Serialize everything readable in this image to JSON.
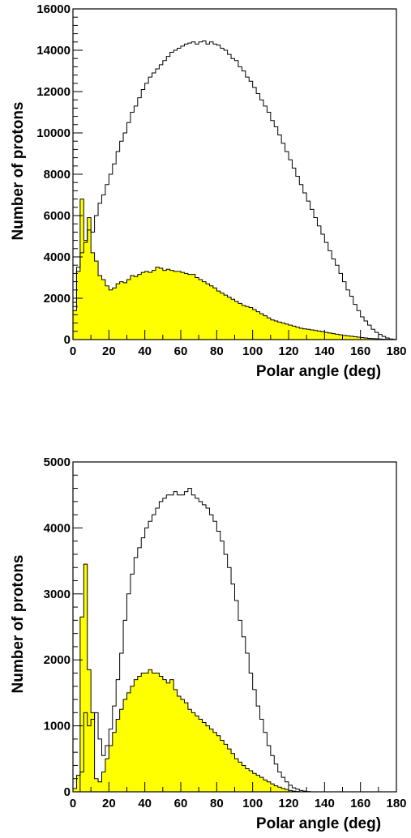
{
  "chart_data": [
    {
      "type": "histogram",
      "xlabel": "Polar angle (deg)",
      "ylabel": "Number of protons",
      "xlim": [
        0,
        180
      ],
      "ylim": [
        0,
        16000
      ],
      "xticks": [
        "0",
        "20",
        "40",
        "60",
        "80",
        "100",
        "120",
        "140",
        "160",
        "180"
      ],
      "yticks": [
        "0",
        "2000",
        "4000",
        "6000",
        "8000",
        "10000",
        "12000",
        "14000",
        "16000"
      ],
      "bin_width": 2,
      "colors": {
        "filled": "#ffff00",
        "outline": "#000000"
      },
      "series": [
        {
          "style": "outline",
          "values": [
            1800,
            3500,
            4200,
            4700,
            5300,
            5200,
            6000,
            6600,
            7000,
            7500,
            8000,
            8500,
            9100,
            9600,
            10000,
            10500,
            11000,
            11300,
            11700,
            12100,
            12400,
            12700,
            12900,
            13100,
            13300,
            13500,
            13700,
            13900,
            14000,
            14100,
            14200,
            14300,
            14350,
            14400,
            14300,
            14400,
            14450,
            14300,
            14400,
            14300,
            14250,
            14100,
            14000,
            13800,
            13600,
            13500,
            13200,
            13000,
            12700,
            12500,
            12200,
            11900,
            11600,
            11300,
            11000,
            10600,
            10300,
            9900,
            9500,
            9100,
            8700,
            8300,
            7900,
            7500,
            7100,
            6700,
            6300,
            5900,
            5500,
            5100,
            4700,
            4300,
            3900,
            3600,
            3200,
            2800,
            2400,
            2100,
            1700,
            1400,
            1100,
            900,
            700,
            500,
            350,
            250,
            150,
            80,
            30,
            10
          ]
        },
        {
          "style": "filled",
          "values": [
            1400,
            3300,
            6800,
            4800,
            5900,
            4200,
            3800,
            3100,
            2900,
            2600,
            2400,
            2500,
            2700,
            2800,
            2750,
            2900,
            3100,
            3050,
            3150,
            3250,
            3300,
            3250,
            3350,
            3500,
            3450,
            3350,
            3400,
            3350,
            3300,
            3300,
            3250,
            3200,
            3150,
            3150,
            3000,
            2900,
            2800,
            2700,
            2600,
            2500,
            2350,
            2250,
            2150,
            2050,
            1950,
            1850,
            1750,
            1650,
            1600,
            1550,
            1450,
            1350,
            1250,
            1150,
            1050,
            950,
            900,
            850,
            800,
            750,
            700,
            650,
            600,
            550,
            520,
            500,
            470,
            440,
            410,
            380,
            350,
            320,
            290,
            260,
            230,
            200,
            180,
            160,
            140,
            120,
            100,
            80,
            60,
            50,
            40,
            30,
            20,
            15,
            10,
            5
          ]
        }
      ]
    },
    {
      "type": "histogram",
      "xlabel": "Polar angle (deg)",
      "ylabel": "Number of protons",
      "xlim": [
        0,
        180
      ],
      "ylim": [
        0,
        5000
      ],
      "xticks": [
        "0",
        "20",
        "40",
        "60",
        "80",
        "100",
        "120",
        "140",
        "160",
        "180"
      ],
      "yticks": [
        "0",
        "1000",
        "2000",
        "3000",
        "4000",
        "5000"
      ],
      "bin_width": 2,
      "colors": {
        "filled": "#ffff00",
        "outline": "#000000"
      },
      "series": [
        {
          "style": "outline",
          "values": [
            0,
            0,
            300,
            1200,
            1000,
            1100,
            1200,
            800,
            550,
            700,
            950,
            1300,
            1700,
            2100,
            2600,
            3000,
            3300,
            3550,
            3700,
            3850,
            4000,
            4100,
            4200,
            4300,
            4400,
            4450,
            4500,
            4500,
            4550,
            4500,
            4500,
            4550,
            4600,
            4500,
            4450,
            4400,
            4350,
            4300,
            4200,
            4100,
            3950,
            3800,
            3600,
            3400,
            3150,
            2900,
            2600,
            2350,
            2100,
            1800,
            1550,
            1300,
            1100,
            900,
            700,
            550,
            420,
            300,
            220,
            150,
            100,
            60,
            40,
            20,
            10,
            5,
            0,
            0,
            0,
            0,
            0,
            0,
            0,
            0,
            0,
            0,
            0,
            0,
            0,
            0,
            0,
            0,
            0,
            0,
            0,
            0,
            0,
            0,
            0,
            0
          ]
        },
        {
          "style": "filled",
          "values": [
            50,
            250,
            2650,
            3450,
            1850,
            1200,
            200,
            150,
            300,
            500,
            700,
            900,
            1100,
            1250,
            1400,
            1500,
            1600,
            1700,
            1750,
            1800,
            1800,
            1850,
            1800,
            1800,
            1750,
            1700,
            1650,
            1700,
            1550,
            1450,
            1400,
            1350,
            1250,
            1200,
            1150,
            1100,
            1050,
            1000,
            950,
            900,
            850,
            780,
            720,
            650,
            580,
            500,
            450,
            400,
            350,
            320,
            280,
            250,
            220,
            180,
            150,
            120,
            90,
            70,
            50,
            35,
            20,
            10,
            5,
            0,
            0,
            0,
            0,
            0,
            0,
            0,
            0,
            0,
            0,
            0,
            0,
            0,
            0,
            0,
            0,
            0,
            0,
            0,
            0,
            0,
            0,
            0,
            0,
            0,
            0,
            0
          ]
        }
      ]
    }
  ]
}
